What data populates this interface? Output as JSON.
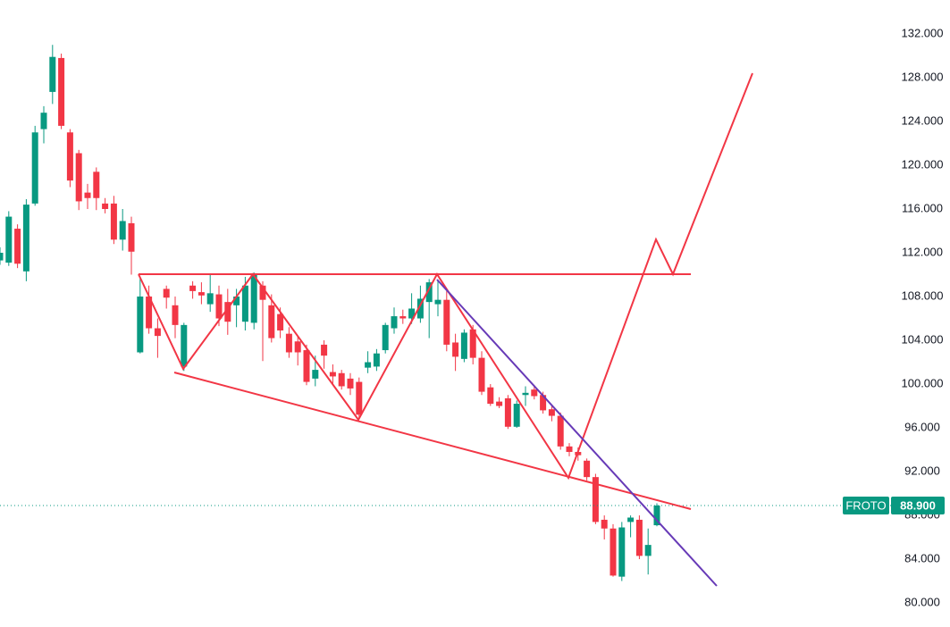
{
  "chart_data": {
    "type": "candlestick",
    "symbol": "FROTO",
    "last_price": 88.9,
    "last_price_label": "88.900",
    "up_color": "#089981",
    "down_color": "#f23645",
    "ylim": [
      77.8,
      135.1
    ],
    "yticks": [
      {
        "value": 80,
        "label": "80.000"
      },
      {
        "value": 84,
        "label": "84.000"
      },
      {
        "value": 88,
        "label": "88.000"
      },
      {
        "value": 92,
        "label": "92.000"
      },
      {
        "value": 96,
        "label": "96.000"
      },
      {
        "value": 100,
        "label": "100.000"
      },
      {
        "value": 104,
        "label": "104.000"
      },
      {
        "value": 108,
        "label": "108.000"
      },
      {
        "value": 112,
        "label": "112.000"
      },
      {
        "value": 116,
        "label": "116.000"
      },
      {
        "value": 120,
        "label": "120.000"
      },
      {
        "value": 124,
        "label": "124.000"
      },
      {
        "value": 128,
        "label": "128.000"
      },
      {
        "value": 132,
        "label": "132.000"
      }
    ],
    "open": [
      111.3,
      111.1,
      114.2,
      110.3,
      116.5,
      123.3,
      126.7,
      129.8,
      123.0,
      121.1,
      117.5,
      119.4,
      116.5,
      116.5,
      113.2,
      114.7,
      102.9,
      108.0,
      105.1,
      108.7,
      107.2,
      101.6,
      109.0,
      108.4,
      107.3,
      108.2,
      107.5,
      107.2,
      105.7,
      105.6,
      109.0,
      107.2,
      106.4,
      104.6,
      103.9,
      103.1,
      100.5,
      103.6,
      101.1,
      101.0,
      100.5,
      100.2,
      101.5,
      101.6,
      103.1,
      105.1,
      106.2,
      106.0,
      106.0,
      107.5,
      107.3,
      107.7,
      103.8,
      102.3,
      105.0,
      102.4,
      99.7,
      98.4,
      98.7,
      96.1,
      99.0,
      99.5,
      99.0,
      97.7,
      97.1,
      94.3,
      93.8,
      93.0,
      91.5,
      87.6,
      86.8,
      82.4,
      87.4,
      87.6,
      84.3,
      87.1
    ],
    "high": [
      112.5,
      115.8,
      114.6,
      116.9,
      123.6,
      125.4,
      131.0,
      130.2,
      123.3,
      121.4,
      118.3,
      119.8,
      117.0,
      117.2,
      116.0,
      115.3,
      109.8,
      109.0,
      106.0,
      109.0,
      108.0,
      105.6,
      109.4,
      109.3,
      110.0,
      109.0,
      108.7,
      108.7,
      109.8,
      110.2,
      109.4,
      108.2,
      107.0,
      105.2,
      104.4,
      103.6,
      102.6,
      104.0,
      101.8,
      101.3,
      101.0,
      100.6,
      103.0,
      103.2,
      105.6,
      107.0,
      106.8,
      108.3,
      109.0,
      109.6,
      109.4,
      108.5,
      104.6,
      105.0,
      105.4,
      103.0,
      100.0,
      98.8,
      99.0,
      98.5,
      99.8,
      99.9,
      99.3,
      98.0,
      97.4,
      94.6,
      94.2,
      93.2,
      91.8,
      88.0,
      87.2,
      87.4,
      88.0,
      88.0,
      86.8,
      89.1
    ],
    "low": [
      110.9,
      110.8,
      110.6,
      109.4,
      116.3,
      122.0,
      125.6,
      123.3,
      118.0,
      115.9,
      116.0,
      115.9,
      115.6,
      112.8,
      112.2,
      110.0,
      102.8,
      104.6,
      102.4,
      106.9,
      104.2,
      101.2,
      107.8,
      107.3,
      106.6,
      105.3,
      104.5,
      105.2,
      104.9,
      105.0,
      102.1,
      103.8,
      104.2,
      102.4,
      101.7,
      99.9,
      99.8,
      101.4,
      100.0,
      99.5,
      99.0,
      96.8,
      101.0,
      101.2,
      102.8,
      104.6,
      105.5,
      105.5,
      105.6,
      104.2,
      106.2,
      103.0,
      101.2,
      102.0,
      101.8,
      99.0,
      98.0,
      97.8,
      95.9,
      96.0,
      98.0,
      98.6,
      97.3,
      96.6,
      94.0,
      93.4,
      93.0,
      91.2,
      87.2,
      85.8,
      82.4,
      82.0,
      86.0,
      84.0,
      82.6,
      87.0
    ],
    "close": [
      112.0,
      115.3,
      111.0,
      116.4,
      123.0,
      124.8,
      129.9,
      123.6,
      118.6,
      116.7,
      117.0,
      117.0,
      116.0,
      113.2,
      114.9,
      112.1,
      108.0,
      105.1,
      104.4,
      107.9,
      105.4,
      105.4,
      108.5,
      108.1,
      108.3,
      106.0,
      105.7,
      108.0,
      109.0,
      110.0,
      107.7,
      104.2,
      104.9,
      102.9,
      102.9,
      100.2,
      101.3,
      102.6,
      100.7,
      99.8,
      99.6,
      97.2,
      102.0,
      102.8,
      105.4,
      106.2,
      106.0,
      106.9,
      107.8,
      109.3,
      107.7,
      103.6,
      102.5,
      104.7,
      102.4,
      99.3,
      98.2,
      98.0,
      96.1,
      98.2,
      99.2,
      98.9,
      97.6,
      97.1,
      94.3,
      93.8,
      93.5,
      91.5,
      87.4,
      86.8,
      82.5,
      86.9,
      87.8,
      84.3,
      85.3,
      88.9
    ]
  }
}
